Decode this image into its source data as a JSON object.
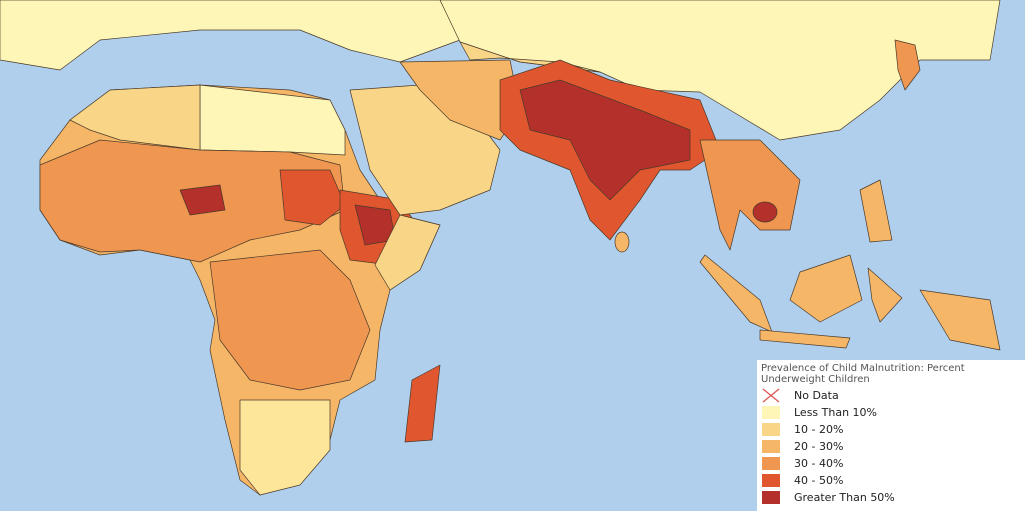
{
  "legend": {
    "title": "Prevalence of Child Malnutrition: Percent Underweight Children",
    "items": [
      {
        "label": "No Data",
        "color": "#e05050",
        "symbol": "x"
      },
      {
        "label": "Less Than 10%",
        "color": "#fef6b6"
      },
      {
        "label": "10 - 20%",
        "color": "#f9d687"
      },
      {
        "label": "20 - 30%",
        "color": "#f5b767"
      },
      {
        "label": "30 - 40%",
        "color": "#ef9650"
      },
      {
        "label": "40 - 50%",
        "color": "#e0572f"
      },
      {
        "label": "Greater Than 50%",
        "color": "#b3302b"
      }
    ]
  }
}
